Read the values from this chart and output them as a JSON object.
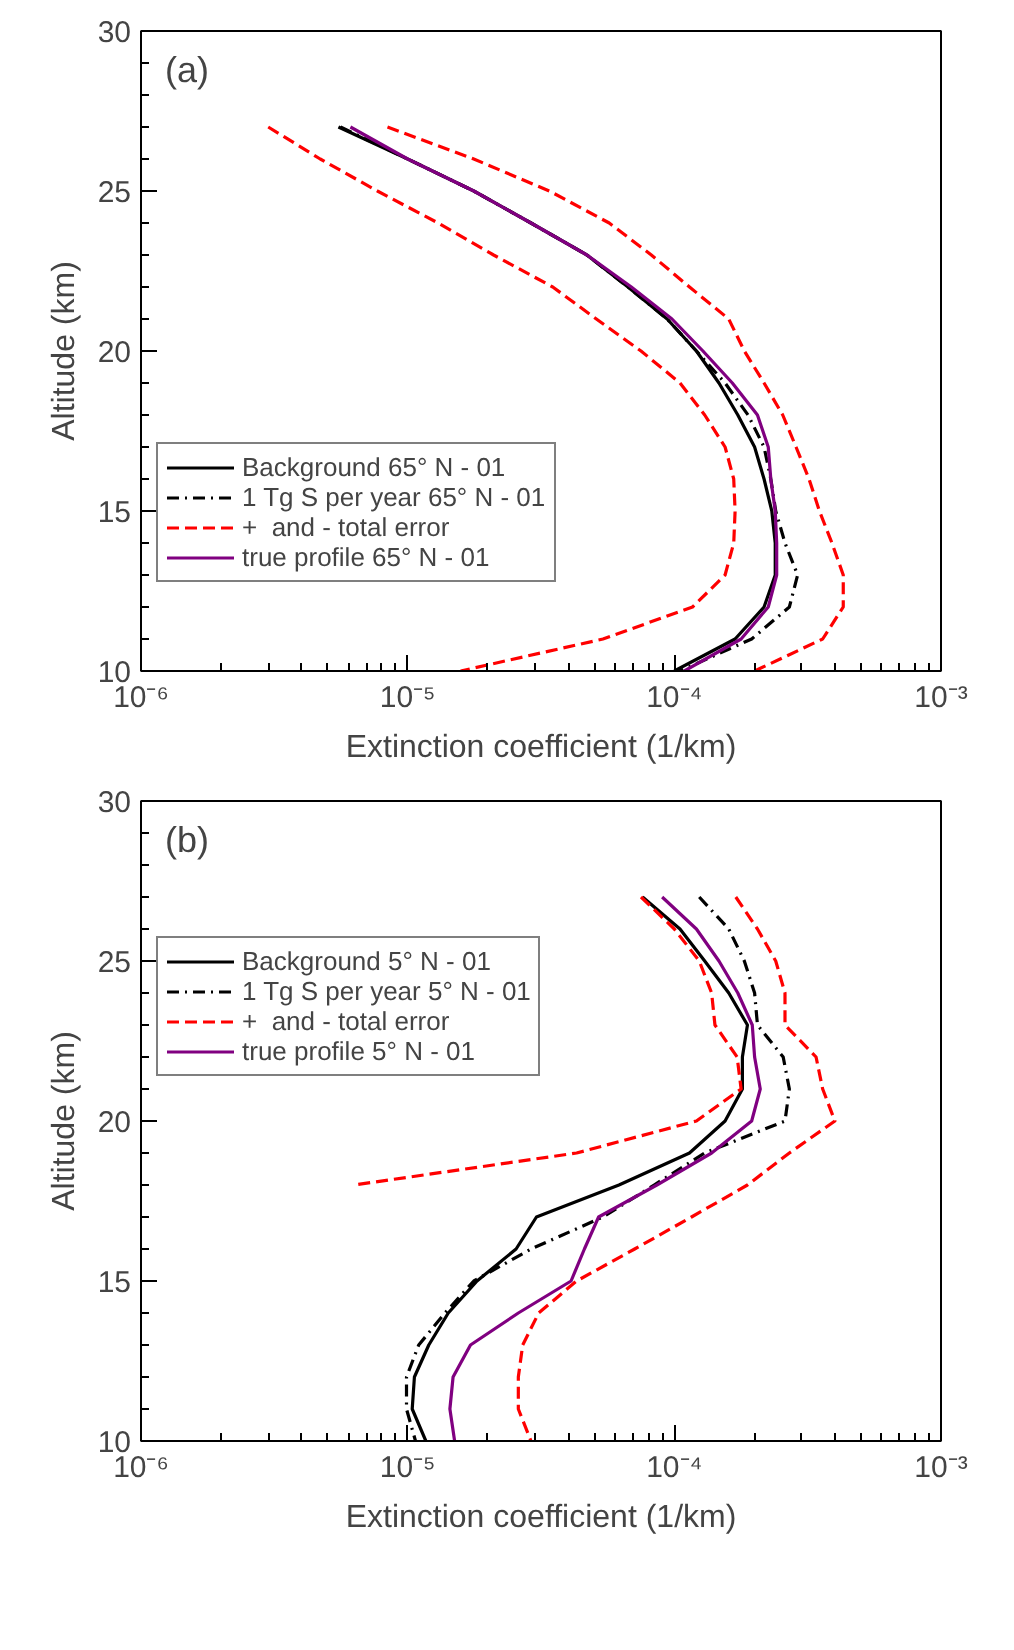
{
  "chart_data": [
    {
      "type": "line",
      "annotations": [
        "(a)"
      ],
      "xlabel": "Extinction coefficient (1/km)",
      "ylabel": "Altitude (km)",
      "log": "x",
      "xlim": [
        1e-06,
        0.001
      ],
      "ylim": [
        10,
        30
      ],
      "xticks": [
        {
          "value": 1e-06,
          "label": "10⁻⁶"
        },
        {
          "value": 1e-05,
          "label": "10⁻⁵"
        },
        {
          "value": 0.0001,
          "label": "10⁻⁴"
        },
        {
          "value": 0.001,
          "label": "10⁻³"
        }
      ],
      "yticks": [
        10,
        15,
        20,
        25,
        30
      ],
      "grid": false,
      "legend": "left",
      "series": [
        {
          "name": "Background 65° N - 01",
          "color": "#000000",
          "line_style": "solid",
          "x": [
            5.5e-06,
            1e-05,
            1.77e-05,
            2.9e-05,
            4.7e-05,
            6.7e-05,
            9.4e-05,
            0.000121,
            0.000147,
            0.000173,
            0.0002,
            0.000217,
            0.000232,
            0.000239,
            0.000239,
            0.000217,
            0.000169,
            0.0001
          ],
          "values": [
            27,
            26,
            25,
            24,
            23,
            22,
            21,
            20,
            19,
            18,
            17,
            16,
            15,
            14,
            13,
            12,
            11,
            10
          ]
        },
        {
          "name": "1 Tg S per year 65° N - 01",
          "color": "#000000",
          "line_style": "dashdot",
          "x": [
            5.6e-06,
            1e-05,
            1.77e-05,
            2.9e-05,
            4.7e-05,
            6.7e-05,
            9.4e-05,
            0.000121,
            0.000155,
            0.000189,
            0.000217,
            0.00023,
            0.00024,
            0.00026,
            0.00029,
            0.00027,
            0.000195,
            0.000105
          ],
          "values": [
            27,
            26,
            25,
            24,
            23,
            22,
            21,
            20,
            19,
            18,
            17,
            16,
            15,
            14,
            13,
            12,
            11,
            10
          ]
        },
        {
          "name": "+  and - total error",
          "color": "#ff0000",
          "line_style": "dashed",
          "x": [
            8.4e-06,
            1.77e-05,
            3.4e-05,
            5.7e-05,
            8.2e-05,
            0.000114,
            0.00016,
            0.000183,
            0.000217,
            0.000255,
            0.000286,
            0.00032,
            0.00035,
            0.00039,
            0.00043,
            0.00043,
            0.00036,
            0.0002
          ],
          "values": [
            27,
            26,
            25,
            24,
            23,
            22,
            21,
            20,
            19,
            18,
            17,
            16,
            15,
            14,
            13,
            12,
            11,
            10
          ]
        },
        {
          "color": "#ff0000",
          "line_style": "dashed",
          "x": [
            3e-06,
            4.7e-06,
            7.7e-06,
            1.3e-05,
            2.1e-05,
            3.5e-05,
            5.1e-05,
            7.5e-05,
            0.000105,
            0.00013,
            0.000155,
            0.000167,
            0.000169,
            0.000167,
            0.000155,
            0.000117,
            5.4e-05,
            1.58e-05
          ],
          "values": [
            27,
            26,
            25,
            24,
            23,
            22,
            21,
            20,
            19,
            18,
            17,
            16,
            15,
            14,
            13,
            12,
            11,
            10
          ]
        },
        {
          "name": "true profile 65° N - 01",
          "color": "#800080",
          "line_style": "solid",
          "x": [
            6.1e-06,
            1e-05,
            1.77e-05,
            2.9e-05,
            4.7e-05,
            6.9e-05,
            9.8e-05,
            0.000128,
            0.000165,
            0.000205,
            0.000225,
            0.00023,
            0.000239,
            0.000242,
            0.000242,
            0.000225,
            0.000178,
            0.000109
          ],
          "values": [
            27,
            26,
            25,
            24,
            23,
            22,
            21,
            20,
            19,
            18,
            17,
            16,
            15,
            14,
            13,
            12,
            11,
            10
          ]
        }
      ]
    },
    {
      "type": "line",
      "annotations": [
        "(b)"
      ],
      "xlabel": "Extinction coefficient (1/km)",
      "ylabel": "Altitude (km)",
      "log": "x",
      "xlim": [
        1e-06,
        0.001
      ],
      "ylim": [
        10,
        30
      ],
      "xticks": [
        {
          "value": 1e-06,
          "label": "10⁻⁶"
        },
        {
          "value": 1e-05,
          "label": "10⁻⁵"
        },
        {
          "value": 0.0001,
          "label": "10⁻⁴"
        },
        {
          "value": 0.001,
          "label": "10⁻³"
        }
      ],
      "yticks": [
        10,
        15,
        20,
        25,
        30
      ],
      "grid": false,
      "legend": "top left",
      "series": [
        {
          "name": "Background 5° N - 01",
          "color": "#000000",
          "line_style": "solid",
          "x": [
            7.6e-05,
            0.000105,
            0.00013,
            0.00016,
            0.000188,
            0.00018,
            0.00018,
            0.000155,
            0.000114,
            6.2e-05,
            3.04e-05,
            2.55e-05,
            1.82e-05,
            1.42e-05,
            1.2e-05,
            1.06e-05,
            1.04e-05,
            1.17e-05
          ],
          "values": [
            27,
            26,
            25,
            24,
            23,
            22,
            21,
            20,
            19,
            18,
            17,
            16,
            15,
            14,
            13,
            12,
            11,
            10
          ]
        },
        {
          "name": "1 Tg S per year 5° N - 01",
          "color": "#000000",
          "line_style": "dashdot",
          "x": [
            0.000124,
            0.00016,
            0.000183,
            0.0002,
            0.000205,
            0.000256,
            0.00027,
            0.00026,
            0.00013,
            8.4e-05,
            5.4e-05,
            2.9e-05,
            1.77e-05,
            1.38e-05,
            1.1e-05,
            9.9e-06,
            9.9e-06,
            1.07e-05
          ],
          "values": [
            27,
            26,
            25,
            24,
            23,
            22,
            21,
            20,
            19,
            18,
            17,
            16,
            15,
            14,
            13,
            12,
            11,
            10
          ]
        },
        {
          "name": "+  and - total error",
          "color": "#ff0000",
          "line_style": "dashed",
          "x": [
            0.00017,
            0.000205,
            0.00024,
            0.00026,
            0.00026,
            0.00034,
            0.00036,
            0.0004,
            0.00027,
            0.000188,
            0.000116,
            7.1e-05,
            4.3e-05,
            3.1e-05,
            2.7e-05,
            2.6e-05,
            2.6e-05,
            2.9e-05
          ],
          "values": [
            27,
            26,
            25,
            24,
            23,
            22,
            21,
            20,
            19,
            18,
            17,
            16,
            15,
            14,
            13,
            12,
            11,
            10
          ]
        },
        {
          "color": "#ff0000",
          "line_style": "dashed",
          "x": [
            7.5e-05,
            0.0001,
            0.000124,
            0.000138,
            0.000142,
            0.000172,
            0.000178,
            0.000121,
            4.3e-05,
            6.3e-06
          ],
          "values": [
            27,
            26,
            25,
            24,
            23,
            22,
            21,
            20,
            19,
            18
          ]
        },
        {
          "name": "true profile 5° N - 01",
          "color": "#800080",
          "line_style": "solid",
          "x": [
            9e-05,
            0.000121,
            0.000147,
            0.000173,
            0.000196,
            0.0002,
            0.00021,
            0.000195,
            0.000138,
            8.6e-05,
            5.2e-05,
            4.6e-05,
            4.1e-05,
            2.6e-05,
            1.72e-05,
            1.48e-05,
            1.44e-05,
            1.5e-05
          ],
          "values": [
            27,
            26,
            25,
            24,
            23,
            22,
            21,
            20,
            19,
            18,
            17,
            16,
            15,
            14,
            13,
            12,
            11,
            10
          ]
        }
      ]
    }
  ]
}
